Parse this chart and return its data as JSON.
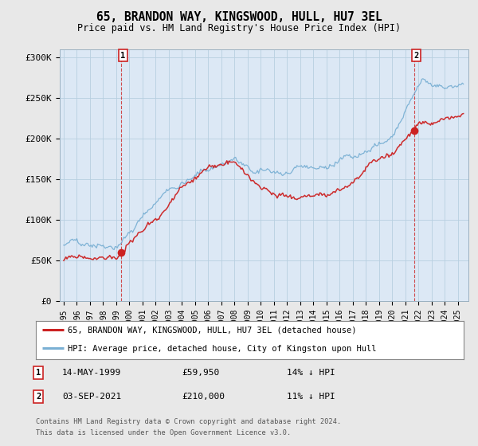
{
  "title": "65, BRANDON WAY, KINGSWOOD, HULL, HU7 3EL",
  "subtitle": "Price paid vs. HM Land Registry's House Price Index (HPI)",
  "ylabel_ticks": [
    "£0",
    "£50K",
    "£100K",
    "£150K",
    "£200K",
    "£250K",
    "£300K"
  ],
  "ylabel_values": [
    0,
    50000,
    100000,
    150000,
    200000,
    250000,
    300000
  ],
  "ylim": [
    0,
    310000
  ],
  "xlim_start": 1994.7,
  "xlim_end": 2025.8,
  "hpi_color": "#7ab0d4",
  "price_color": "#cc2222",
  "plot_bg_color": "#dce8f5",
  "background_color": "#e8e8e8",
  "grid_color": "#b8cfe0",
  "sale1_date": 1999.37,
  "sale1_price": 59950,
  "sale1_label": "1",
  "sale1_date_str": "14-MAY-1999",
  "sale1_price_str": "£59,950",
  "sale1_hpi_str": "14% ↓ HPI",
  "sale2_date": 2021.67,
  "sale2_price": 210000,
  "sale2_label": "2",
  "sale2_date_str": "03-SEP-2021",
  "sale2_price_str": "£210,000",
  "sale2_hpi_str": "11% ↓ HPI",
  "legend_label1": "65, BRANDON WAY, KINGSWOOD, HULL, HU7 3EL (detached house)",
  "legend_label2": "HPI: Average price, detached house, City of Kingston upon Hull",
  "footer1": "Contains HM Land Registry data © Crown copyright and database right 2024.",
  "footer2": "This data is licensed under the Open Government Licence v3.0."
}
